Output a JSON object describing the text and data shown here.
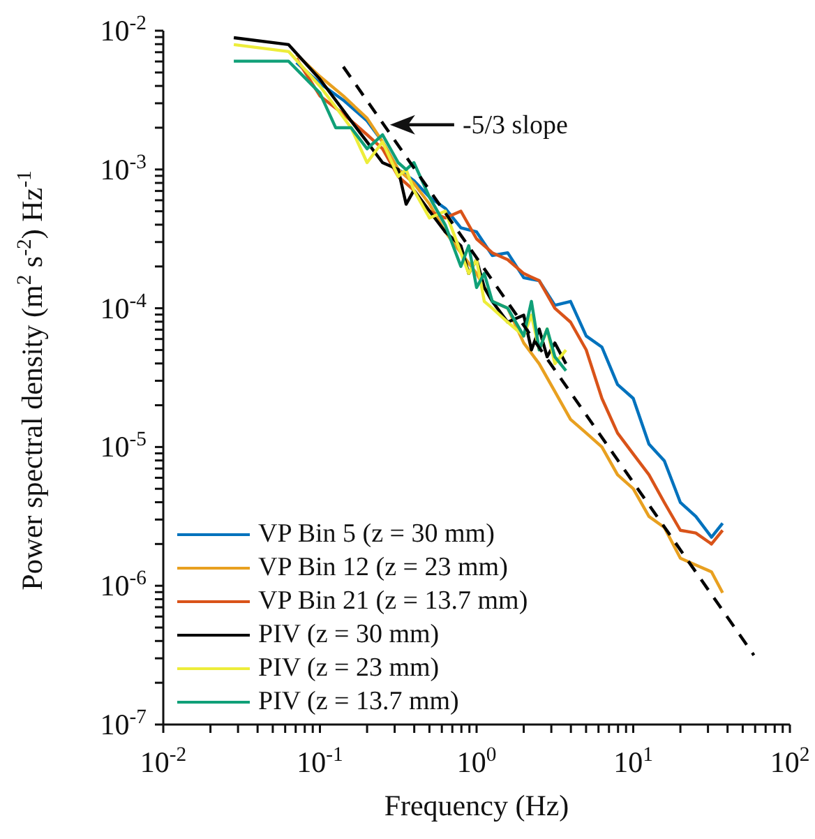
{
  "chart_data": {
    "type": "line",
    "xlabel": "Frequency (Hz)",
    "ylabel": "Power spectral density  (m$^{2}$ s$^{-2}$) Hz$^{-1}$",
    "log": "xy",
    "grid": false,
    "legend": "bottom left",
    "line_style": "solid",
    "marker": "none",
    "xlim": [
      0.01,
      100
    ],
    "xticks": [
      {
        "value": 0.01,
        "label": "10$^{-2}$"
      },
      {
        "value": 0.02,
        "label": null
      },
      {
        "value": 0.03,
        "label": null
      },
      {
        "value": 0.04,
        "label": null
      },
      {
        "value": 0.05,
        "label": null
      },
      {
        "value": 0.06,
        "label": null
      },
      {
        "value": 0.07,
        "label": null
      },
      {
        "value": 0.08,
        "label": null
      },
      {
        "value": 0.09,
        "label": null
      },
      {
        "value": 0.1,
        "label": "10$^{-1}$"
      },
      {
        "value": 0.2,
        "label": null
      },
      {
        "value": 0.3,
        "label": null
      },
      {
        "value": 0.4,
        "label": null
      },
      {
        "value": 0.5,
        "label": null
      },
      {
        "value": 0.6,
        "label": null
      },
      {
        "value": 0.7,
        "label": null
      },
      {
        "value": 0.8,
        "label": null
      },
      {
        "value": 0.9,
        "label": null
      },
      {
        "value": 1,
        "label": "10$^{0}$"
      },
      {
        "value": 2,
        "label": null
      },
      {
        "value": 3,
        "label": null
      },
      {
        "value": 4,
        "label": null
      },
      {
        "value": 5,
        "label": null
      },
      {
        "value": 6,
        "label": null
      },
      {
        "value": 7,
        "label": null
      },
      {
        "value": 8,
        "label": null
      },
      {
        "value": 9,
        "label": null
      },
      {
        "value": 10,
        "label": "10$^{1}$"
      },
      {
        "value": 20,
        "label": null
      },
      {
        "value": 30,
        "label": null
      },
      {
        "value": 40,
        "label": null
      },
      {
        "value": 50,
        "label": null
      },
      {
        "value": 60,
        "label": null
      },
      {
        "value": 70,
        "label": null
      },
      {
        "value": 80,
        "label": null
      },
      {
        "value": 90,
        "label": null
      },
      {
        "value": 100,
        "label": "10$^{2}$"
      }
    ],
    "ylim": [
      1e-07,
      0.01
    ],
    "yticks": [
      {
        "value": 1e-07,
        "label": "10$^{-7}$"
      },
      {
        "value": 2e-07,
        "label": null
      },
      {
        "value": 3e-07,
        "label": null
      },
      {
        "value": 4e-07,
        "label": null
      },
      {
        "value": 5e-07,
        "label": null
      },
      {
        "value": 6e-07,
        "label": null
      },
      {
        "value": 7e-07,
        "label": null
      },
      {
        "value": 8e-07,
        "label": null
      },
      {
        "value": 9e-07,
        "label": null
      },
      {
        "value": 1e-06,
        "label": "10$^{-6}$"
      },
      {
        "value": 2e-06,
        "label": null
      },
      {
        "value": 3e-06,
        "label": null
      },
      {
        "value": 4e-06,
        "label": null
      },
      {
        "value": 5e-06,
        "label": null
      },
      {
        "value": 6e-06,
        "label": null
      },
      {
        "value": 7e-06,
        "label": null
      },
      {
        "value": 8e-06,
        "label": null
      },
      {
        "value": 9e-06,
        "label": null
      },
      {
        "value": 1e-05,
        "label": "10$^{-5}$"
      },
      {
        "value": 2e-05,
        "label": null
      },
      {
        "value": 3e-05,
        "label": null
      },
      {
        "value": 4e-05,
        "label": null
      },
      {
        "value": 5e-05,
        "label": null
      },
      {
        "value": 6e-05,
        "label": null
      },
      {
        "value": 7e-05,
        "label": null
      },
      {
        "value": 8e-05,
        "label": null
      },
      {
        "value": 9e-05,
        "label": null
      },
      {
        "value": 0.0001,
        "label": "10$^{-4}$"
      },
      {
        "value": 0.0002,
        "label": null
      },
      {
        "value": 0.0003,
        "label": null
      },
      {
        "value": 0.0004,
        "label": null
      },
      {
        "value": 0.0005,
        "label": null
      },
      {
        "value": 0.0006,
        "label": null
      },
      {
        "value": 0.0007,
        "label": null
      },
      {
        "value": 0.0008,
        "label": null
      },
      {
        "value": 0.0009,
        "label": null
      },
      {
        "value": 0.001,
        "label": "10$^{-3}$"
      },
      {
        "value": 0.002,
        "label": null
      },
      {
        "value": 0.003,
        "label": null
      },
      {
        "value": 0.004,
        "label": null
      },
      {
        "value": 0.005,
        "label": null
      },
      {
        "value": 0.006,
        "label": null
      },
      {
        "value": 0.007,
        "label": null
      },
      {
        "value": 0.008,
        "label": null
      },
      {
        "value": 0.009,
        "label": null
      },
      {
        "value": 0.01,
        "label": "10$^{-2}$"
      }
    ],
    "annotations": [
      {
        "text": "-5/3 slope",
        "x": 0.28,
        "y": 0.0021
      }
    ],
    "series": [
      {
        "name": "VP Bin 5 (z = 30 mm)",
        "color": "#0072bd",
        "x": [
          0.0708,
          0.1,
          0.141,
          0.2,
          0.251,
          0.316,
          0.398,
          0.501,
          0.631,
          0.794,
          1,
          1.26,
          1.58,
          2,
          2.51,
          3.16,
          3.98,
          5.01,
          6.31,
          7.94,
          10,
          12.6,
          15.8,
          20,
          25.1,
          31.6,
          37.2
        ],
        "values": [
          0.00589,
          0.00417,
          0.00316,
          0.00224,
          0.00158,
          0.001,
          0.000832,
          0.000631,
          0.000525,
          0.00038,
          0.000355,
          0.00024,
          0.000251,
          0.000166,
          0.000158,
          0.000105,
          0.000112,
          6.31e-05,
          5.25e-05,
          2.82e-05,
          2.24e-05,
          1.05e-05,
          7.94e-06,
          3.98e-06,
          3.16e-06,
          2.24e-06,
          2.82e-06
        ]
      },
      {
        "name": "VP Bin 12 (z = 23 mm)",
        "color": "#e8a020",
        "x": [
          0.0708,
          0.1,
          0.141,
          0.2,
          0.251,
          0.316,
          0.398,
          0.501,
          0.631,
          0.794,
          1,
          1.26,
          1.58,
          2,
          2.51,
          3.16,
          3.98,
          5.01,
          6.31,
          7.94,
          10,
          12.6,
          15.8,
          20,
          25.1,
          31.6,
          37.2
        ],
        "values": [
          0.00676,
          0.00468,
          0.00339,
          0.00234,
          0.00158,
          0.001,
          0.000794,
          0.000562,
          0.000355,
          0.000251,
          0.000178,
          0.000112,
          0.0001,
          5.62e-05,
          3.98e-05,
          2.51e-05,
          1.58e-05,
          1.26e-05,
          1e-05,
          6.31e-06,
          5.01e-06,
          3.16e-06,
          2.63e-06,
          1.58e-06,
          1.41e-06,
          1.26e-06,
          8.91e-07
        ]
      },
      {
        "name": "VP Bin 21 (z = 13.7 mm)",
        "color": "#d95319",
        "x": [
          0.0708,
          0.1,
          0.141,
          0.2,
          0.251,
          0.316,
          0.398,
          0.501,
          0.631,
          0.794,
          1,
          1.26,
          1.58,
          2,
          2.51,
          3.16,
          3.98,
          5.01,
          6.31,
          7.94,
          10,
          12.6,
          15.8,
          20,
          25.1,
          31.6,
          37.2
        ],
        "values": [
          0.00631,
          0.00339,
          0.00251,
          0.00178,
          0.00141,
          0.000891,
          0.000708,
          0.000501,
          0.000447,
          0.000501,
          0.000316,
          0.000251,
          0.000224,
          0.000178,
          0.000158,
          0.0001,
          7.94e-05,
          5.01e-05,
          2.24e-05,
          1.26e-05,
          8.91e-06,
          6.31e-06,
          3.98e-06,
          2.51e-06,
          2.4e-06,
          2e-06,
          2.51e-06
        ]
      },
      {
        "name": "PIV (z = 30 mm)",
        "color": "#000000",
        "x": [
          0.0282,
          0.0631,
          0.1,
          0.126,
          0.158,
          0.2,
          0.251,
          0.316,
          0.355,
          0.398,
          0.501,
          0.631,
          0.794,
          0.891,
          1,
          1.12,
          1.26,
          1.58,
          2,
          2.24,
          2.51,
          2.82,
          3.16,
          3.72
        ],
        "values": [
          0.00891,
          0.00794,
          0.00447,
          0.00316,
          0.00224,
          0.00158,
          0.00112,
          0.001,
          0.000562,
          0.000708,
          0.000501,
          0.000355,
          0.000282,
          0.000178,
          0.000224,
          0.000141,
          0.000112,
          7.94e-05,
          8.91e-05,
          5.01e-05,
          7.08e-05,
          4.47e-05,
          5.62e-05,
          3.98e-05
        ]
      },
      {
        "name": "PIV (z = 23 mm)",
        "color": "#eded3a",
        "x": [
          0.0282,
          0.0631,
          0.1,
          0.126,
          0.158,
          0.2,
          0.251,
          0.316,
          0.355,
          0.398,
          0.501,
          0.631,
          0.794,
          0.891,
          1,
          1.12,
          1.26,
          1.58,
          2,
          2.24,
          2.51,
          2.82,
          3.16,
          3.72
        ],
        "values": [
          0.00794,
          0.00708,
          0.00398,
          0.00282,
          0.002,
          0.00112,
          0.00158,
          0.000891,
          0.001,
          0.000708,
          0.000447,
          0.000501,
          0.000251,
          0.000178,
          0.000224,
          0.000112,
          0.0001,
          7.94e-05,
          6.31e-05,
          8.91e-05,
          5.01e-05,
          7.08e-05,
          3.98e-05,
          5.01e-05
        ]
      },
      {
        "name": "PIV (z = 13.7 mm)",
        "color": "#10a078",
        "x": [
          0.0282,
          0.0631,
          0.1,
          0.126,
          0.158,
          0.2,
          0.251,
          0.316,
          0.355,
          0.398,
          0.501,
          0.631,
          0.794,
          0.891,
          1,
          1.12,
          1.26,
          1.58,
          2,
          2.24,
          2.51,
          2.82,
          3.16,
          3.72
        ],
        "values": [
          0.00603,
          0.00603,
          0.00355,
          0.002,
          0.002,
          0.00141,
          0.00178,
          0.00112,
          0.001,
          0.00112,
          0.000631,
          0.000398,
          0.0002,
          0.000282,
          0.000141,
          0.000178,
          0.000112,
          0.0001,
          6.31e-05,
          0.000112,
          5.01e-05,
          7.08e-05,
          4.47e-05,
          3.55e-05
        ]
      },
      {
        "type": "line",
        "color": "#000000",
        "line_style": "dashed",
        "x": [
          0.141,
          58.9
        ],
        "values": [
          0.0055,
          3.16e-07
        ]
      }
    ]
  }
}
